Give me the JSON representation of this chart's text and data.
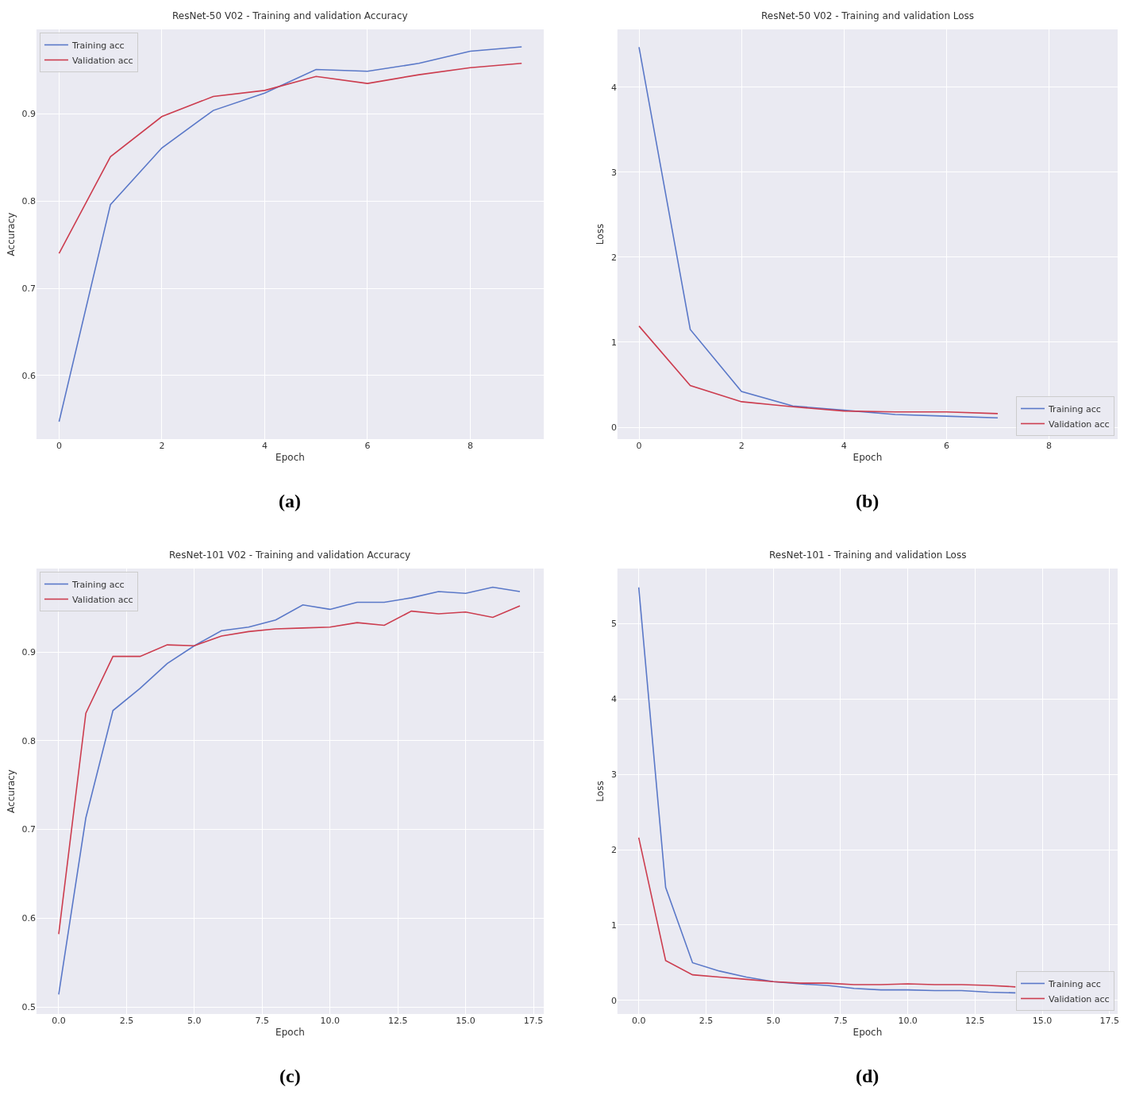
{
  "chart_data": [
    {
      "type": "line",
      "title": "ResNet-50 V02 - Training and validation Accuracy",
      "xlabel": "Epoch",
      "ylabel": "Accuracy",
      "annotations": [
        "(a)"
      ],
      "x": [
        0,
        1,
        2,
        3,
        4,
        5,
        6,
        7,
        8,
        9
      ],
      "series": [
        {
          "name": "Training acc",
          "color": "#5a78c8",
          "values": [
            0.547,
            0.796,
            0.861,
            0.904,
            0.924,
            0.951,
            0.949,
            0.958,
            0.972,
            0.977
          ]
        },
        {
          "name": "Validation acc",
          "color": "#cc3d4f",
          "values": [
            0.74,
            0.851,
            0.897,
            0.92,
            0.927,
            0.943,
            0.935,
            0.945,
            0.953,
            0.958
          ]
        }
      ],
      "xlim": [
        -0.44,
        9.43
      ],
      "ylim": [
        0.527,
        0.997
      ],
      "xticks": [
        0,
        2,
        4,
        6,
        8
      ],
      "yticks": [
        0.6,
        0.7,
        0.8,
        0.9
      ],
      "grid": true,
      "legend": "top left"
    },
    {
      "type": "line",
      "title": "ResNet-50 V02 - Training and validation Loss",
      "xlabel": "Epoch",
      "ylabel": "Loss",
      "annotations": [
        "(b)"
      ],
      "x": [
        0,
        1,
        2,
        3,
        4,
        5,
        6,
        7
      ],
      "series": [
        {
          "name": "Training acc",
          "color": "#5a78c8",
          "values": [
            4.47,
            1.15,
            0.42,
            0.25,
            0.2,
            0.15,
            0.13,
            0.11
          ]
        },
        {
          "name": "Validation acc",
          "color": "#cc3d4f",
          "values": [
            1.19,
            0.49,
            0.3,
            0.24,
            0.19,
            0.18,
            0.18,
            0.16
          ]
        }
      ],
      "xlim": [
        -0.42,
        9.34
      ],
      "ylim": [
        -0.14,
        4.68
      ],
      "xticks": [
        0,
        2,
        4,
        6,
        8
      ],
      "yticks": [
        0,
        1,
        2,
        3,
        4
      ],
      "grid": true,
      "legend": "bottom right"
    },
    {
      "type": "line",
      "title": "ResNet-101 V02 - Training and validation Accuracy",
      "xlabel": "Epoch",
      "ylabel": "Accuracy",
      "annotations": [
        "(c)"
      ],
      "x": [
        0,
        1,
        2,
        3,
        4,
        5,
        6,
        7,
        8,
        9,
        10,
        11,
        12,
        13,
        14,
        15,
        16,
        17
      ],
      "series": [
        {
          "name": "Training acc",
          "color": "#5a78c8",
          "values": [
            0.514,
            0.713,
            0.834,
            0.859,
            0.887,
            0.907,
            0.924,
            0.928,
            0.936,
            0.953,
            0.948,
            0.956,
            0.956,
            0.961,
            0.968,
            0.966,
            0.973,
            0.968
          ]
        },
        {
          "name": "Validation acc",
          "color": "#cc3d4f",
          "values": [
            0.582,
            0.831,
            0.895,
            0.895,
            0.908,
            0.907,
            0.918,
            0.923,
            0.926,
            0.927,
            0.928,
            0.933,
            0.93,
            0.946,
            0.943,
            0.945,
            0.939,
            0.952
          ]
        }
      ],
      "xlim": [
        -0.82,
        17.88
      ],
      "ylim": [
        0.492,
        0.994
      ],
      "xticks": [
        {
          "value": 0,
          "label": "0.0"
        },
        {
          "value": 2.5,
          "label": "2.5"
        },
        {
          "value": 5,
          "label": "5.0"
        },
        {
          "value": 7.5,
          "label": "7.5"
        },
        {
          "value": 10,
          "label": "10.0"
        },
        {
          "value": 12.5,
          "label": "12.5"
        },
        {
          "value": 15,
          "label": "15.0"
        },
        {
          "value": 17.5,
          "label": "17.5"
        }
      ],
      "yticks": [
        0.5,
        0.6,
        0.7,
        0.8,
        0.9
      ],
      "grid": true,
      "legend": "top left"
    },
    {
      "type": "line",
      "title": "ResNet-101 - Training and validation Loss",
      "xlabel": "Epoch",
      "ylabel": "Loss",
      "annotations": [
        "(d)"
      ],
      "x": [
        0,
        1,
        2,
        3,
        4,
        5,
        6,
        7,
        8,
        9,
        10,
        11,
        12,
        13,
        14
      ],
      "series": [
        {
          "name": "Training acc",
          "color": "#5a78c8",
          "values": [
            5.48,
            1.5,
            0.5,
            0.39,
            0.31,
            0.25,
            0.22,
            0.2,
            0.16,
            0.14,
            0.14,
            0.13,
            0.13,
            0.11,
            0.1
          ]
        },
        {
          "name": "Validation acc",
          "color": "#cc3d4f",
          "values": [
            2.16,
            0.53,
            0.34,
            0.31,
            0.28,
            0.25,
            0.23,
            0.23,
            0.21,
            0.21,
            0.22,
            0.21,
            0.21,
            0.2,
            0.18
          ]
        }
      ],
      "xlim": [
        -0.79,
        17.8
      ],
      "ylim": [
        -0.18,
        5.73
      ],
      "xticks": [
        {
          "value": 0,
          "label": "0.0"
        },
        {
          "value": 2.5,
          "label": "2.5"
        },
        {
          "value": 5,
          "label": "5.0"
        },
        {
          "value": 7.5,
          "label": "7.5"
        },
        {
          "value": 10,
          "label": "10.0"
        },
        {
          "value": 12.5,
          "label": "12.5"
        },
        {
          "value": 15,
          "label": "15.0"
        },
        {
          "value": 17.5,
          "label": "17.5"
        }
      ],
      "yticks": [
        0,
        1,
        2,
        3,
        4,
        5
      ],
      "grid": true,
      "legend": "bottom right"
    }
  ]
}
